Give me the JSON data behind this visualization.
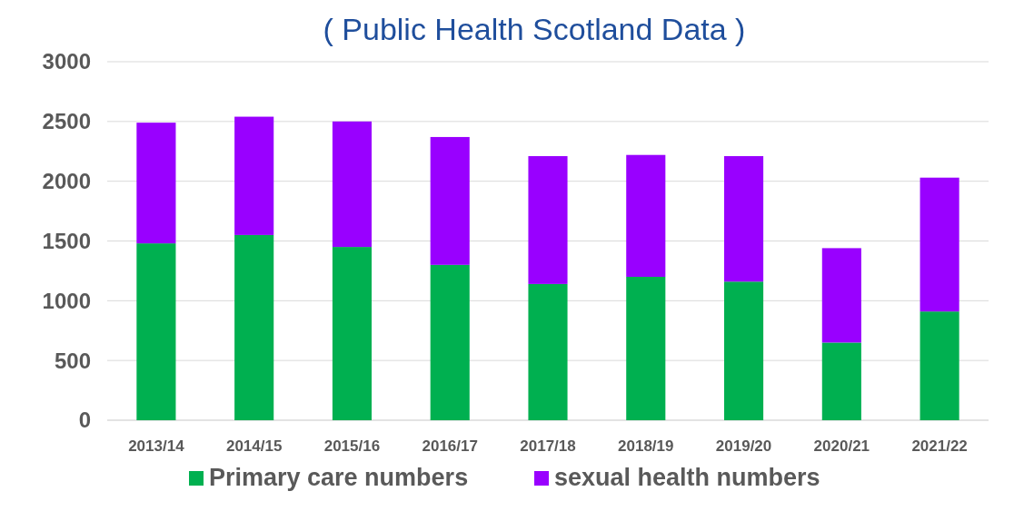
{
  "chart_data": {
    "type": "bar",
    "title": "( Public Health Scotland Data )",
    "stacked": true,
    "categories": [
      "2013/14",
      "2014/15",
      "2015/16",
      "2016/17",
      "2017/18",
      "2018/19",
      "2019/20",
      "2020/21",
      "2021/22"
    ],
    "series": [
      {
        "name": "Primary care numbers",
        "color": "#00b050",
        "values": [
          1480,
          1550,
          1450,
          1300,
          1140,
          1200,
          1160,
          650,
          910
        ]
      },
      {
        "name": "sexual health numbers",
        "color": "#9900ff",
        "values": [
          1010,
          990,
          1050,
          1070,
          1070,
          1020,
          1050,
          790,
          1120
        ]
      }
    ],
    "ylim": [
      0,
      3000
    ],
    "yticks": [
      0,
      500,
      1000,
      1500,
      2000,
      2500,
      3000
    ],
    "grid": "y",
    "legend": "bottom"
  }
}
